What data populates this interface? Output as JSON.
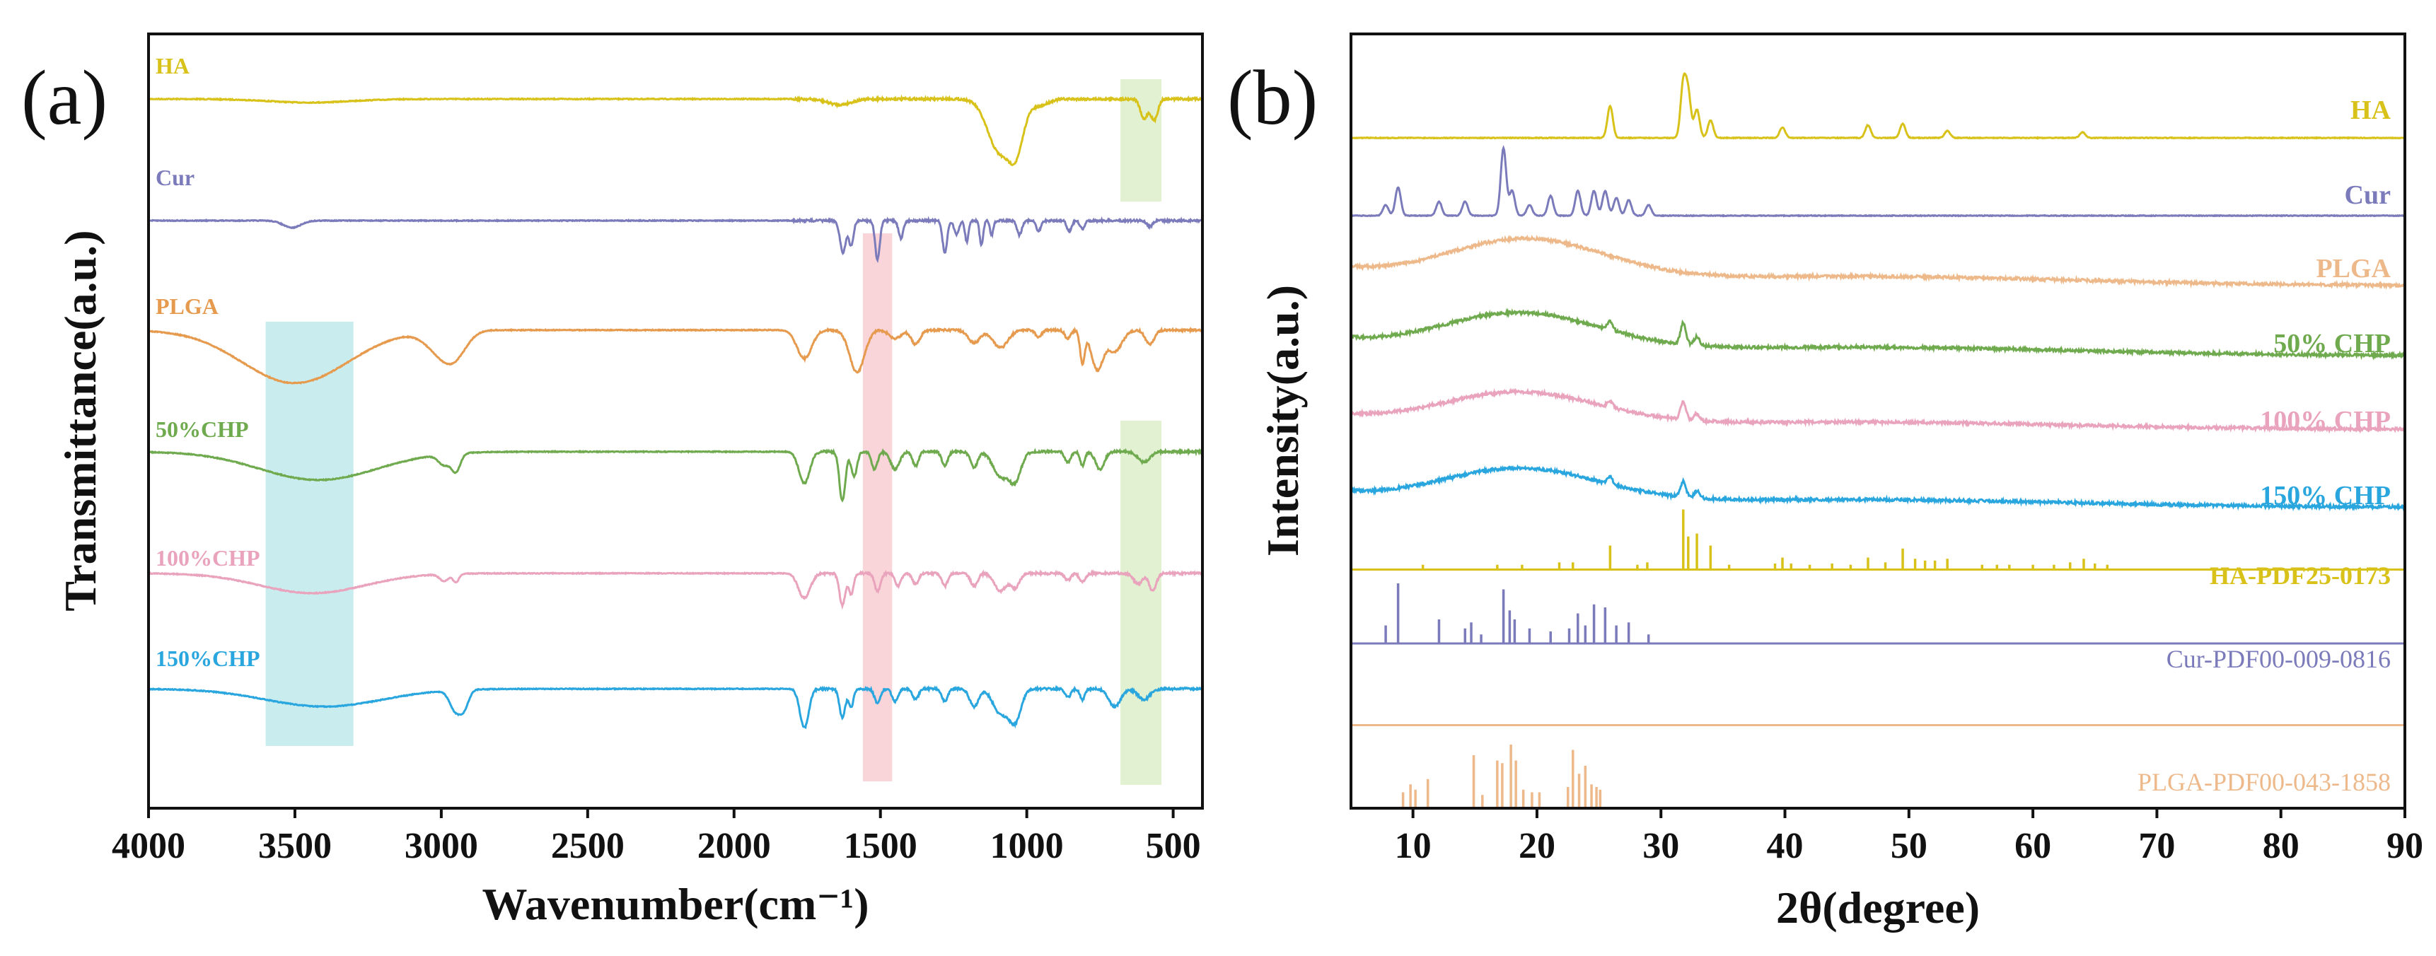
{
  "colors": {
    "HA": "#d8c21a",
    "Cur": "#7b7bbb",
    "PLGA": "#e69a4e",
    "PLGA_b": "#eeb98a",
    "CHP50": "#6faa4f",
    "CHP100": "#e9a3bc",
    "CHP150": "#2aa6df",
    "axis": "#111111",
    "shade_cyan": "#bfeaec",
    "shade_pink": "#f8cdd2",
    "shade_green": "#dcefc9"
  },
  "chart_data": [
    {
      "type": "line",
      "panel": "(a)",
      "xlabel": "Wavenumber(cm⁻¹)",
      "ylabel": "Transmittance(a.u.)",
      "xlim": [
        4000,
        400
      ],
      "x_reversed": true,
      "xticks": [
        4000,
        3500,
        3000,
        2500,
        2000,
        1500,
        1000,
        500
      ],
      "shaded_regions": [
        {
          "from": 3600,
          "to": 3300,
          "color": "shade_cyan"
        },
        {
          "from": 1560,
          "to": 1460,
          "color": "shade_pink"
        },
        {
          "from": 680,
          "to": 540,
          "color": "shade_green",
          "part": "top"
        },
        {
          "from": 680,
          "to": 540,
          "color": "shade_green",
          "part": "bottom"
        }
      ],
      "series": [
        {
          "name": "HA",
          "color": "HA",
          "baseline": 0.0,
          "features": [
            [
              3450,
              5,
              140
            ],
            [
              1640,
              8,
              40
            ],
            [
              1100,
              25,
              40
            ],
            [
              1035,
              60,
              25
            ],
            [
              1090,
              50,
              40
            ],
            [
              960,
              10,
              30
            ],
            [
              600,
              28,
              12
            ],
            [
              565,
              30,
              12
            ]
          ]
        },
        {
          "name": "Cur",
          "color": "Cur",
          "baseline": 1.0,
          "features": [
            [
              3510,
              10,
              30
            ],
            [
              1628,
              45,
              10
            ],
            [
              1600,
              35,
              8
            ],
            [
              1510,
              55,
              8
            ],
            [
              1430,
              25,
              8
            ],
            [
              1280,
              45,
              8
            ],
            [
              1240,
              20,
              8
            ],
            [
              1205,
              30,
              6
            ],
            [
              1155,
              35,
              6
            ],
            [
              1120,
              20,
              6
            ],
            [
              1025,
              20,
              8
            ],
            [
              960,
              15,
              8
            ],
            [
              855,
              15,
              8
            ],
            [
              810,
              12,
              8
            ],
            [
              580,
              8,
              10
            ]
          ]
        },
        {
          "name": "PLGA",
          "color": "PLGA",
          "baseline": 1.9,
          "features": [
            [
              3500,
              75,
              180
            ],
            [
              3000,
              30,
              50
            ],
            [
              2950,
              25,
              40
            ],
            [
              1760,
              40,
              25
            ],
            [
              1580,
              60,
              25
            ],
            [
              1450,
              12,
              20
            ],
            [
              1380,
              20,
              15
            ],
            [
              1180,
              18,
              20
            ],
            [
              1090,
              25,
              25
            ],
            [
              960,
              10,
              10
            ],
            [
              860,
              12,
              10
            ],
            [
              810,
              45,
              8
            ],
            [
              760,
              55,
              20
            ],
            [
              700,
              30,
              25
            ],
            [
              580,
              20,
              15
            ]
          ]
        },
        {
          "name": "50%CHP",
          "color": "CHP50",
          "baseline": 2.9,
          "features": [
            [
              3420,
              40,
              200
            ],
            [
              2990,
              15,
              20
            ],
            [
              2950,
              25,
              15
            ],
            [
              1760,
              45,
              18
            ],
            [
              1630,
              70,
              10
            ],
            [
              1590,
              35,
              10
            ],
            [
              1520,
              25,
              10
            ],
            [
              1450,
              25,
              15
            ],
            [
              1380,
              20,
              10
            ],
            [
              1280,
              20,
              10
            ],
            [
              1180,
              22,
              12
            ],
            [
              1090,
              35,
              25
            ],
            [
              1040,
              40,
              20
            ],
            [
              860,
              15,
              10
            ],
            [
              810,
              20,
              8
            ],
            [
              750,
              25,
              15
            ],
            [
              600,
              15,
              20
            ]
          ]
        },
        {
          "name": "100%CHP",
          "color": "CHP100",
          "baseline": 3.9,
          "features": [
            [
              3440,
              28,
              180
            ],
            [
              2990,
              10,
              15
            ],
            [
              2950,
              12,
              10
            ],
            [
              1760,
              35,
              20
            ],
            [
              1630,
              45,
              10
            ],
            [
              1600,
              30,
              8
            ],
            [
              1510,
              25,
              10
            ],
            [
              1440,
              18,
              10
            ],
            [
              1380,
              15,
              10
            ],
            [
              1280,
              18,
              10
            ],
            [
              1180,
              18,
              12
            ],
            [
              1090,
              25,
              20
            ],
            [
              1040,
              20,
              15
            ],
            [
              860,
              10,
              10
            ],
            [
              810,
              12,
              10
            ],
            [
              620,
              15,
              15
            ],
            [
              570,
              25,
              12
            ]
          ]
        },
        {
          "name": "150%CHP",
          "color": "CHP150",
          "baseline": 4.85,
          "features": [
            [
              3400,
              25,
              200
            ],
            [
              2950,
              30,
              20
            ],
            [
              2920,
              20,
              15
            ],
            [
              1760,
              55,
              15
            ],
            [
              1630,
              40,
              10
            ],
            [
              1600,
              25,
              8
            ],
            [
              1510,
              20,
              10
            ],
            [
              1450,
              18,
              10
            ],
            [
              1380,
              15,
              10
            ],
            [
              1280,
              18,
              10
            ],
            [
              1180,
              25,
              15
            ],
            [
              1090,
              35,
              25
            ],
            [
              1040,
              45,
              20
            ],
            [
              860,
              12,
              10
            ],
            [
              810,
              15,
              8
            ],
            [
              700,
              25,
              20
            ],
            [
              600,
              15,
              20
            ]
          ]
        }
      ]
    },
    {
      "type": "line",
      "panel": "(b)",
      "xlabel": "2θ(degree)",
      "ylabel": "Intensity(a.u.)",
      "xlim": [
        5,
        90
      ],
      "xticks": [
        10,
        20,
        30,
        40,
        50,
        60,
        70,
        80,
        90
      ],
      "series": [
        {
          "name": "HA",
          "color": "HA",
          "baseline": 0.0,
          "hump": [
            0,
            0,
            1
          ],
          "peaks": [
            [
              25.9,
              45
            ],
            [
              31.8,
              75
            ],
            [
              32.2,
              60
            ],
            [
              32.9,
              40
            ],
            [
              34.0,
              25
            ],
            [
              39.8,
              15
            ],
            [
              46.7,
              18
            ],
            [
              49.5,
              20
            ],
            [
              53.1,
              10
            ],
            [
              64.0,
              8
            ]
          ]
        },
        {
          "name": "Cur",
          "color": "Cur",
          "baseline": 1.0,
          "hump": [
            0,
            0,
            1
          ],
          "peaks": [
            [
              7.8,
              15
            ],
            [
              8.8,
              40
            ],
            [
              12.1,
              20
            ],
            [
              14.2,
              20
            ],
            [
              17.3,
              95
            ],
            [
              18.0,
              35
            ],
            [
              19.4,
              15
            ],
            [
              21.1,
              28
            ],
            [
              23.3,
              35
            ],
            [
              24.6,
              35
            ],
            [
              25.5,
              35
            ],
            [
              26.4,
              25
            ],
            [
              27.4,
              22
            ],
            [
              29.0,
              15
            ]
          ]
        },
        {
          "name": "PLGA",
          "color": "PLGA_b",
          "baseline": 1.9,
          "hump": [
            19,
            60,
            4
          ],
          "peaks": []
        },
        {
          "name": "50% CHP",
          "color": "CHP50",
          "baseline": 2.8,
          "hump": [
            18.5,
            55,
            4
          ],
          "peaks": [
            [
              25.9,
              12
            ],
            [
              31.8,
              30
            ],
            [
              32.9,
              12
            ]
          ]
        },
        {
          "name": "100% CHP",
          "color": "CHP100",
          "baseline": 3.75,
          "hump": [
            18.5,
            48,
            4
          ],
          "peaks": [
            [
              25.9,
              8
            ],
            [
              31.8,
              25
            ],
            [
              32.9,
              10
            ]
          ]
        },
        {
          "name": "150% CHP",
          "color": "CHP150",
          "baseline": 4.75,
          "hump": [
            18.5,
            50,
            4
          ],
          "peaks": [
            [
              25.9,
              10
            ],
            [
              31.8,
              22
            ],
            [
              32.9,
              10
            ]
          ]
        }
      ],
      "references": [
        {
          "name": "HA-PDF25-0173",
          "color": "HA",
          "baseline": 5.55,
          "sticks": [
            [
              10.8,
              8
            ],
            [
              16.8,
              8
            ],
            [
              18.8,
              8
            ],
            [
              21.8,
              12
            ],
            [
              22.9,
              12
            ],
            [
              25.9,
              40
            ],
            [
              28.1,
              8
            ],
            [
              28.9,
              12
            ],
            [
              31.8,
              100
            ],
            [
              32.2,
              55
            ],
            [
              32.9,
              60
            ],
            [
              34.0,
              40
            ],
            [
              35.5,
              8
            ],
            [
              39.2,
              10
            ],
            [
              39.8,
              20
            ],
            [
              40.5,
              10
            ],
            [
              42.0,
              8
            ],
            [
              43.8,
              10
            ],
            [
              45.3,
              8
            ],
            [
              46.7,
              20
            ],
            [
              48.1,
              12
            ],
            [
              49.5,
              35
            ],
            [
              50.5,
              18
            ],
            [
              51.3,
              15
            ],
            [
              52.1,
              15
            ],
            [
              53.1,
              18
            ],
            [
              55.9,
              8
            ],
            [
              57.1,
              8
            ],
            [
              58.1,
              8
            ],
            [
              60.0,
              8
            ],
            [
              61.7,
              8
            ],
            [
              63.0,
              12
            ],
            [
              64.1,
              18
            ],
            [
              65.0,
              10
            ],
            [
              66.0,
              8
            ]
          ]
        },
        {
          "name": "Cur-PDF00-009-0816",
          "color": "Cur",
          "baseline": 6.5,
          "sticks": [
            [
              7.8,
              30
            ],
            [
              8.8,
              100
            ],
            [
              12.1,
              40
            ],
            [
              14.2,
              25
            ],
            [
              14.7,
              35
            ],
            [
              15.5,
              15
            ],
            [
              17.3,
              90
            ],
            [
              17.8,
              55
            ],
            [
              18.2,
              40
            ],
            [
              19.4,
              25
            ],
            [
              21.1,
              20
            ],
            [
              22.6,
              25
            ],
            [
              23.3,
              50
            ],
            [
              23.9,
              30
            ],
            [
              24.6,
              65
            ],
            [
              25.5,
              60
            ],
            [
              26.4,
              30
            ],
            [
              27.4,
              35
            ],
            [
              29.0,
              15
            ]
          ]
        },
        {
          "name": "PLGA-PDF00-043-1858",
          "color": "PLGA_b",
          "baseline": 7.55,
          "sticks": [
            [
              9.2,
              30
            ],
            [
              9.8,
              45
            ],
            [
              10.2,
              35
            ],
            [
              11.2,
              55
            ],
            [
              14.9,
              100
            ],
            [
              15.6,
              25
            ],
            [
              16.8,
              90
            ],
            [
              17.2,
              85
            ],
            [
              17.9,
              120
            ],
            [
              18.3,
              90
            ],
            [
              18.9,
              35
            ],
            [
              19.6,
              30
            ],
            [
              20.2,
              30
            ],
            [
              22.5,
              40
            ],
            [
              22.9,
              110
            ],
            [
              23.4,
              65
            ],
            [
              23.9,
              80
            ],
            [
              24.4,
              45
            ],
            [
              24.8,
              40
            ],
            [
              25.1,
              35
            ]
          ]
        }
      ]
    }
  ],
  "labels": {
    "panel_a": "(a)",
    "panel_b": "(b)",
    "a_HA": "HA",
    "a_Cur": "Cur",
    "a_PLGA": "PLGA",
    "a_50": "50%CHP",
    "a_100": "100%CHP",
    "a_150": "150%CHP",
    "b_HA": "HA",
    "b_Cur": "Cur",
    "b_PLGA": "PLGA",
    "b_50": "50% CHP",
    "b_100": "100% CHP",
    "b_150": "150% CHP",
    "b_ref_HA": "HA-PDF25-0173",
    "b_ref_Cur": "Cur-PDF00-009-0816",
    "b_ref_PLGA": "PLGA-PDF00-043-1858",
    "a_xlabel": "Wavenumber(cm⁻¹)",
    "a_ylabel": "Transmittance(a.u.)",
    "b_xlabel": "2θ(degree)",
    "b_ylabel": "Intensity(a.u.)"
  }
}
